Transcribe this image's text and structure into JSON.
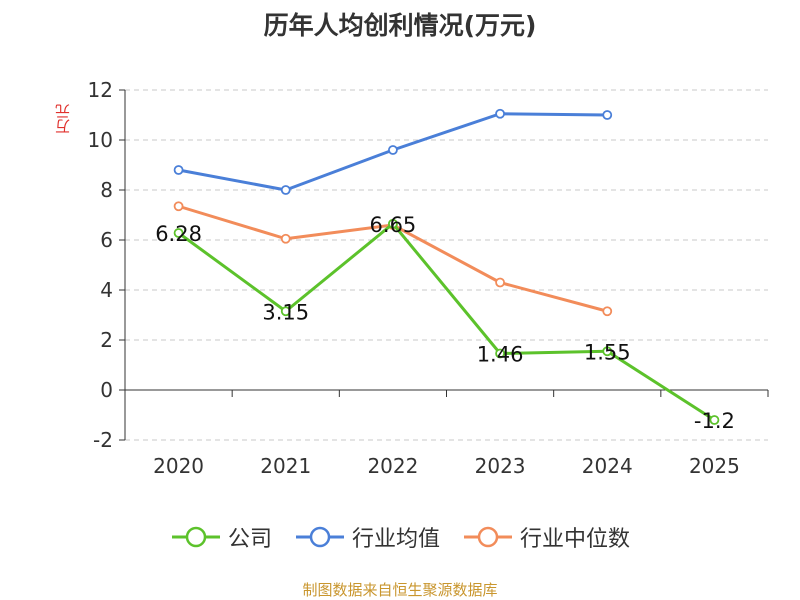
{
  "chart_data": {
    "type": "line",
    "title": "历年人均创利情况(万元)",
    "ylabel": "万元",
    "categories": [
      "2020",
      "2021",
      "2022",
      "2023",
      "2024",
      "2025"
    ],
    "y_ticks": [
      "-2",
      "0",
      "2",
      "4",
      "6",
      "8",
      "10",
      "12"
    ],
    "ylim": [
      -2,
      12
    ],
    "grid": true,
    "legend_position": "bottom",
    "series": [
      {
        "name": "公司",
        "color": "#5cc22b",
        "values": [
          6.28,
          3.15,
          6.65,
          1.46,
          1.55,
          -1.2
        ],
        "labels": [
          "6.28",
          "3.15",
          "6.65",
          "1.46",
          "1.55",
          "-1.2"
        ]
      },
      {
        "name": "行业均值",
        "color": "#4a7fd8",
        "values": [
          8.8,
          8.0,
          9.6,
          11.05,
          11.0,
          null
        ]
      },
      {
        "name": "行业中位数",
        "color": "#f28c5a",
        "values": [
          7.35,
          6.05,
          6.6,
          4.3,
          3.15,
          null
        ]
      }
    ]
  },
  "source": "制图数据来自恒生聚源数据库"
}
